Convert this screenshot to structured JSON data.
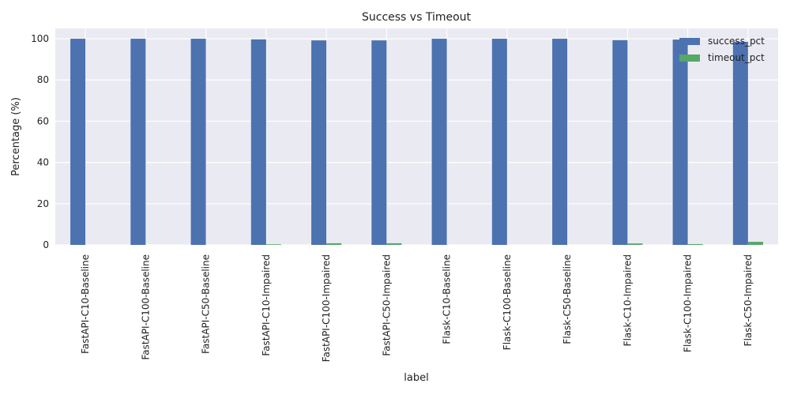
{
  "chart_data": {
    "type": "bar",
    "title": "Success vs Timeout",
    "xlabel": "label",
    "ylabel": "Percentage (%)",
    "ylim": [
      0,
      105
    ],
    "yticks": [
      0,
      20,
      40,
      60,
      80,
      100
    ],
    "grid": true,
    "legend_position": "top-right",
    "categories": [
      "FastAPI-C10-Baseline",
      "FastAPI-C100-Baseline",
      "FastAPI-C50-Baseline",
      "FastAPI-C10-Impaired",
      "FastAPI-C100-Impaired",
      "FastAPI-C50-Impaired",
      "Flask-C10-Baseline",
      "Flask-C100-Baseline",
      "Flask-C50-Baseline",
      "Flask-C10-Impaired",
      "Flask-C100-Impaired",
      "Flask-C50-Impaired"
    ],
    "series": [
      {
        "name": "success_pct",
        "color": "#4c72b0",
        "values": [
          100,
          100,
          100,
          99.7,
          99.2,
          99.2,
          100,
          100,
          100,
          99.3,
          99.6,
          98.5
        ]
      },
      {
        "name": "timeout_pct",
        "color": "#55a868",
        "values": [
          0,
          0,
          0,
          0.3,
          0.8,
          0.8,
          0,
          0,
          0,
          0.7,
          0.4,
          1.5
        ]
      }
    ]
  }
}
